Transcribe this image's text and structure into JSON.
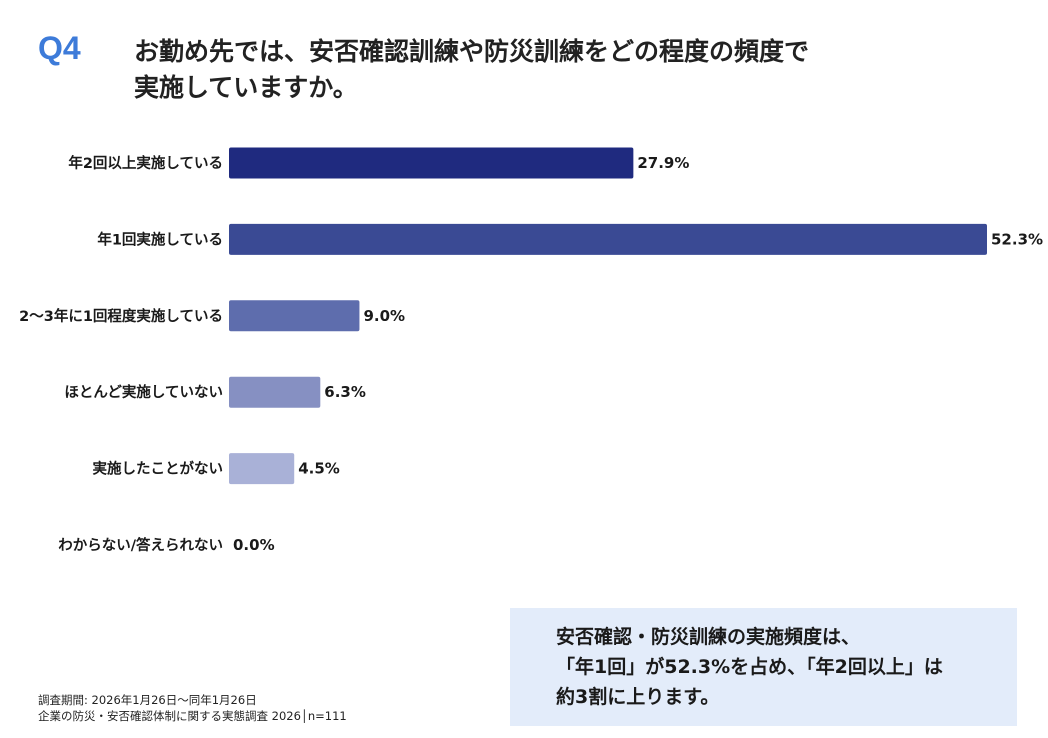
{
  "header": {
    "q_label": "Q4",
    "title_lines": [
      "お勤め先では、安否確認訓練や防災訓練をどの程度の頻度で",
      "実施していますか。"
    ]
  },
  "chart_data": {
    "type": "bar",
    "orientation": "horizontal",
    "categories": [
      "年2回以上実施している",
      "年1回実施している",
      "2〜3年に1回程度実施している",
      "ほとんど実施していない",
      "実施したことがない",
      "わからない/答えられない"
    ],
    "values": [
      27.9,
      52.3,
      9.0,
      6.3,
      4.5,
      0.0
    ],
    "value_labels": [
      "27.9%",
      "52.3%",
      "9.0%",
      "6.3%",
      "4.5%",
      "0.0%"
    ],
    "unit": "%",
    "bar_colors": [
      "#1f2a7f",
      "#3a4a94",
      "#5e6dad",
      "#8690c2",
      "#a9b1d7",
      "#c7cde6"
    ],
    "xlim": [
      0,
      52.3
    ],
    "grid": false,
    "legend": "none"
  },
  "summary": {
    "lines": [
      "安否確認・防災訓練の実施頻度は、",
      "「年1回」が52.3%を占め、「年2回以上」は",
      "約3割に上ります。"
    ]
  },
  "footer": {
    "lines": [
      "調査期間: 2026年1月26日〜同年1月26日",
      "企業の防災・安否確認体制に関する実態調査 2026│n=111"
    ]
  }
}
